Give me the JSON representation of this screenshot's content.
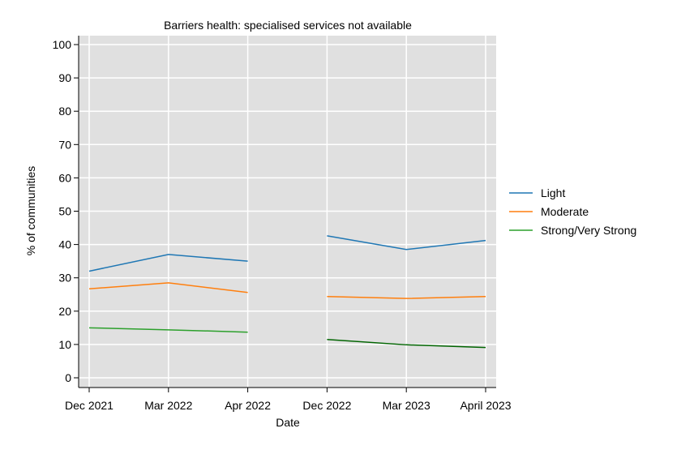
{
  "chart_data": {
    "type": "line",
    "title": "Barriers health: specialised services not available",
    "xlabel": "Date",
    "ylabel": "% of communities",
    "categories": [
      "Dec 2021",
      "Mar 2022",
      "Apr 2022",
      "Dec 2022",
      "Mar 2023",
      "April 2023"
    ],
    "ylim": [
      0,
      100
    ],
    "yticks": [
      0,
      10,
      20,
      30,
      40,
      50,
      60,
      70,
      80,
      90,
      100
    ],
    "grid": true,
    "legend_position": "right",
    "series": [
      {
        "name": "Light",
        "color": "#1f77b4",
        "segments": [
          {
            "categories": [
              "Dec 2021",
              "Mar 2022",
              "Apr 2022"
            ],
            "values": [
              32.0,
              37.0,
              35.0
            ],
            "color": "#1f77b4"
          },
          {
            "categories": [
              "Dec 2022",
              "Mar 2023",
              "April 2023"
            ],
            "values": [
              42.6,
              38.5,
              41.2
            ],
            "color": "#1f77b4"
          }
        ]
      },
      {
        "name": "Moderate",
        "color": "#ff7f0e",
        "segments": [
          {
            "categories": [
              "Dec 2021",
              "Mar 2022",
              "Apr 2022"
            ],
            "values": [
              26.7,
              28.5,
              25.6
            ],
            "color": "#ff7f0e"
          },
          {
            "categories": [
              "Dec 2022",
              "Mar 2023",
              "April 2023"
            ],
            "values": [
              24.4,
              23.8,
              24.4
            ],
            "color": "#ff7f0e"
          }
        ]
      },
      {
        "name": "Strong/Very Strong",
        "color": "#2ca02c",
        "segments": [
          {
            "categories": [
              "Dec 2021",
              "Mar 2022",
              "Apr 2022"
            ],
            "values": [
              15.0,
              14.4,
              13.7
            ],
            "color": "#2ca02c"
          },
          {
            "categories": [
              "Dec 2022",
              "Mar 2023",
              "April 2023"
            ],
            "values": [
              11.5,
              9.9,
              9.1
            ],
            "color": "#006400"
          }
        ]
      }
    ]
  }
}
